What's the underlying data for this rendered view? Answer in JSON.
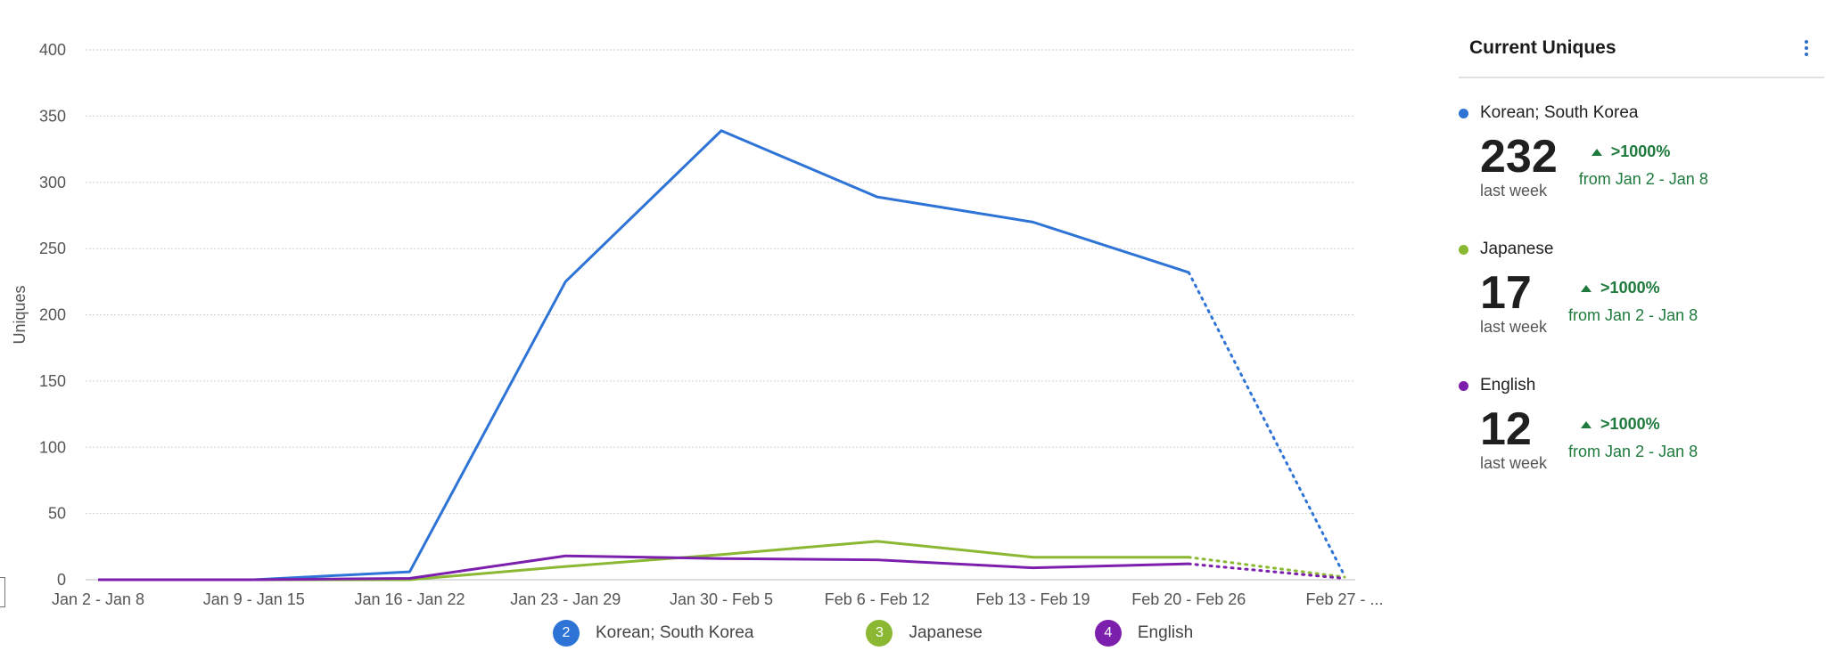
{
  "chart_data": {
    "type": "line",
    "ylabel": "Uniques",
    "xlabel": "",
    "ylim": [
      0,
      400
    ],
    "yticks": [
      0,
      50,
      100,
      150,
      200,
      250,
      300,
      350,
      400
    ],
    "grid": true,
    "legend_position": "bottom",
    "categories": [
      "Jan 2 - Jan 8",
      "Jan 9 - Jan 15",
      "Jan 16 - Jan 22",
      "Jan 23 - Jan 29",
      "Jan 30 - Feb 5",
      "Feb 6 - Feb 12",
      "Feb 13 - Feb 19",
      "Feb 20 - Feb 26",
      "Feb 27 - ..."
    ],
    "incomplete_last_point": true,
    "series": [
      {
        "name": "Korean; South Korea",
        "badge": "2",
        "color": "#2e74d6",
        "values": [
          0,
          0,
          6,
          225,
          339,
          289,
          270,
          232,
          3
        ]
      },
      {
        "name": "Japanese",
        "badge": "3",
        "color": "#8ab833",
        "values": [
          0,
          0,
          0,
          10,
          19,
          29,
          17,
          17,
          2
        ]
      },
      {
        "name": "English",
        "badge": "4",
        "color": "#7d1fad",
        "values": [
          0,
          0,
          1,
          18,
          16,
          15,
          9,
          12,
          1
        ]
      }
    ]
  },
  "panel": {
    "title": "Current Uniques",
    "menu_icon": "kebab-vertical-icon",
    "metrics": [
      {
        "name": "Korean; South Korea",
        "color": "#2e74d6",
        "value": "232",
        "sub": "last week",
        "change": ">1000%",
        "from": "from Jan 2 - Jan 8"
      },
      {
        "name": "Japanese",
        "color": "#8ab833",
        "value": "17",
        "sub": "last week",
        "change": ">1000%",
        "from": "from Jan 2 - Jan 8"
      },
      {
        "name": "English",
        "color": "#7d1fad",
        "value": "12",
        "sub": "last week",
        "change": ">1000%",
        "from": "from Jan 2 - Jan 8"
      }
    ]
  }
}
